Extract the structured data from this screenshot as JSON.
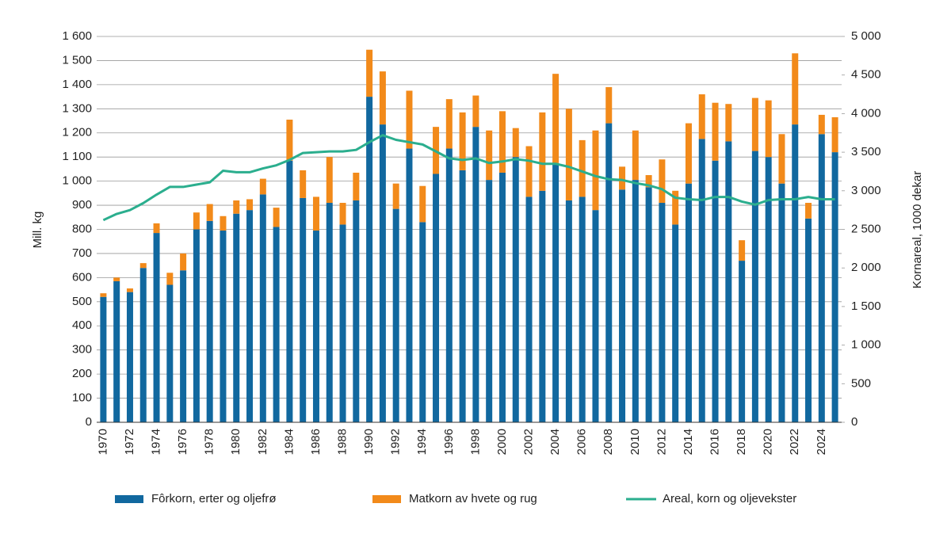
{
  "chart_data": {
    "type": "bar",
    "stacked": true,
    "y_label": "Mill. kg",
    "y2_label": "Kornareal, 1000 dekar",
    "categories": [
      "1970",
      null,
      "1972",
      null,
      "1974",
      null,
      "1976",
      null,
      "1978",
      null,
      "1980",
      null,
      "1982",
      null,
      "1984",
      null,
      "1986",
      null,
      "1988",
      null,
      "1990",
      null,
      "1992",
      null,
      "1994",
      null,
      "1996",
      null,
      "1998",
      null,
      "2000",
      null,
      "2002",
      null,
      "2004",
      null,
      "2006",
      null,
      "2008",
      null,
      "2010",
      null,
      "2012",
      null,
      "2014",
      null,
      "2016",
      null,
      "2018",
      null,
      "2020",
      null,
      "2022",
      null,
      "2024",
      null
    ],
    "series": [
      {
        "name": "Fôrkorn, erter og oljefrø",
        "type": "bar",
        "color": "#11689f",
        "values": [
          520,
          585,
          540,
          640,
          785,
          570,
          630,
          800,
          835,
          795,
          865,
          880,
          945,
          810,
          1085,
          930,
          795,
          910,
          820,
          920,
          1350,
          1235,
          885,
          1135,
          830,
          1030,
          1135,
          1045,
          1225,
          1005,
          1035,
          1100,
          935,
          960,
          1075,
          920,
          935,
          880,
          1240,
          965,
          1005,
          975,
          910,
          820,
          990,
          1175,
          1085,
          1165,
          670,
          1125,
          1100,
          990,
          1235,
          845,
          1195,
          1120
        ]
      },
      {
        "name": "Matkorn av hvete og rug",
        "type": "bar",
        "color": "#f28a1a",
        "values": [
          15,
          15,
          15,
          20,
          40,
          50,
          70,
          70,
          70,
          60,
          55,
          45,
          65,
          80,
          170,
          115,
          140,
          190,
          90,
          115,
          195,
          220,
          105,
          240,
          150,
          195,
          205,
          240,
          130,
          205,
          255,
          120,
          210,
          325,
          370,
          380,
          235,
          330,
          150,
          95,
          205,
          50,
          180,
          140,
          250,
          185,
          240,
          155,
          85,
          220,
          235,
          205,
          295,
          65,
          80,
          145
        ]
      },
      {
        "name": "Areal, korn og oljevekster",
        "type": "line",
        "axis": "y2",
        "color": "#2bae8e",
        "values": [
          2620,
          2700,
          2750,
          2840,
          2950,
          3050,
          3050,
          3080,
          3110,
          3260,
          3240,
          3240,
          3290,
          3330,
          3400,
          3490,
          3500,
          3510,
          3510,
          3530,
          3630,
          3720,
          3660,
          3630,
          3600,
          3510,
          3420,
          3400,
          3420,
          3360,
          3380,
          3410,
          3390,
          3350,
          3350,
          3310,
          3250,
          3190,
          3150,
          3140,
          3100,
          3070,
          3020,
          2910,
          2890,
          2880,
          2920,
          2920,
          2860,
          2820,
          2880,
          2890,
          2890,
          2920,
          2890,
          2890
        ]
      }
    ],
    "ylim": [
      0,
      1600
    ],
    "yticks": [
      0,
      100,
      200,
      300,
      400,
      500,
      600,
      700,
      800,
      900,
      {
        "value": 1000,
        "label": "1 000"
      },
      {
        "value": 1100,
        "label": "1 100"
      },
      {
        "value": 1200,
        "label": "1 200"
      },
      {
        "value": 1300,
        "label": "1 300"
      },
      {
        "value": 1400,
        "label": "1 400"
      },
      {
        "value": 1500,
        "label": "1 500"
      },
      {
        "value": 1600,
        "label": "1 600"
      }
    ],
    "y2lim": [
      0,
      5000
    ],
    "y2ticks": [
      0,
      500,
      {
        "value": 1000,
        "label": "1 000"
      },
      {
        "value": 1500,
        "label": "1 500"
      },
      {
        "value": 2000,
        "label": "2 000"
      },
      {
        "value": 2500,
        "label": "2 500"
      },
      {
        "value": 3000,
        "label": "3 000"
      },
      {
        "value": 3500,
        "label": "3 500"
      },
      {
        "value": 4000,
        "label": "4 000"
      },
      {
        "value": 4500,
        "label": "4 500"
      },
      {
        "value": 5000,
        "label": "5 000"
      }
    ],
    "grid": true
  }
}
